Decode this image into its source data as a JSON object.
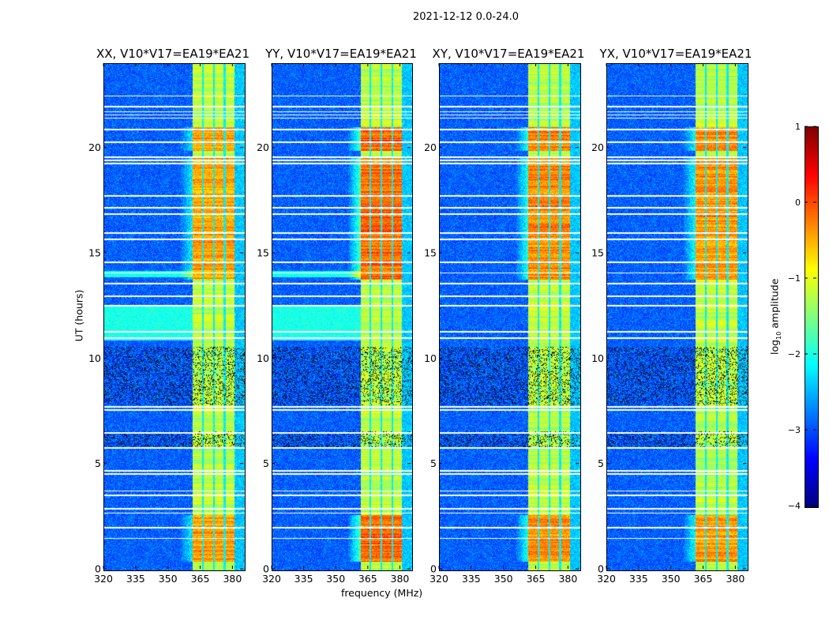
{
  "figure": {
    "suptitle": "2021-12-12 0.0-24.0"
  },
  "chart_data": {
    "type": "heatmap",
    "title": "2021-12-12 0.0-24.0",
    "xlabel": "frequency (MHz)",
    "ylabel": "UT (hours)",
    "xlim": [
      320,
      385
    ],
    "ylim": [
      0,
      24
    ],
    "xticks": [
      320,
      335,
      350,
      365,
      380
    ],
    "yticks": [
      0,
      5,
      10,
      15,
      20
    ],
    "colormap": "jet",
    "colorbar": {
      "label_prefix": "log",
      "label_sub": "10",
      "label_suffix": " amplitude",
      "range": [
        -4,
        1
      ],
      "ticks": [
        1,
        0,
        -1,
        -2,
        -3,
        -4
      ],
      "tick_labels": [
        "1",
        "0",
        "−1",
        "−2",
        "−3",
        "−4"
      ]
    },
    "panels": [
      {
        "title": "XX, V10*V17=EA19*EA21",
        "band_gain": 0.75,
        "lowband_stripes": true
      },
      {
        "title": "YY, V10*V17=EA19*EA21",
        "band_gain": 1.1,
        "lowband_stripes": true
      },
      {
        "title": "XY, V10*V17=EA19*EA21",
        "band_gain": 0.95,
        "lowband_stripes": false
      },
      {
        "title": "YX, V10*V17=EA19*EA21",
        "band_gain": 0.85,
        "lowband_stripes": false
      }
    ],
    "background_level": -2.9,
    "band_mhz": [
      361,
      380.5
    ],
    "band_level": -1.2,
    "band_gaps_mhz": [
      365.7,
      370.8,
      375.9
    ],
    "active_periods_ut": [
      [
        0.4,
        2.6
      ],
      [
        13.8,
        19.6
      ],
      [
        19.9,
        21.0
      ]
    ],
    "rfi_periods_ut": [
      [
        5.8,
        6.6
      ],
      [
        7.8,
        10.6
      ]
    ],
    "lowband_stripe_periods_ut": [
      [
        10.9,
        12.5
      ],
      [
        13.9,
        14.2
      ]
    ],
    "flagged_ut": [
      1.5,
      2.0,
      2.7,
      2.9,
      3.55,
      3.75,
      4.55,
      4.7,
      5.8,
      6.5,
      7.6,
      7.75,
      11.0,
      11.3,
      12.55,
      13.0,
      13.6,
      14.1,
      14.6,
      15.7,
      16.0,
      16.9,
      17.2,
      17.75,
      19.3,
      19.45,
      19.6,
      20.3,
      20.9,
      21.45,
      21.6,
      21.75,
      22.0,
      22.5
    ]
  }
}
